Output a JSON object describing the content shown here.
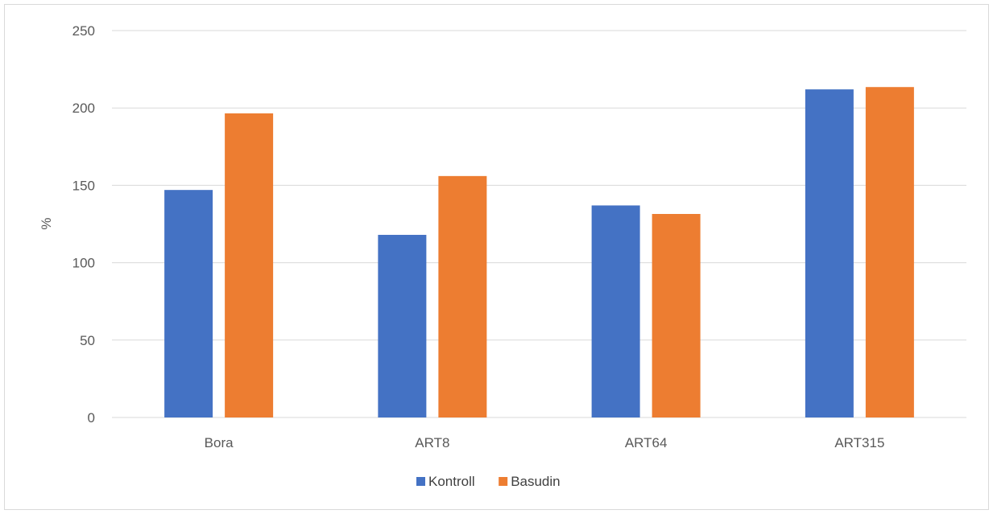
{
  "chart_data": {
    "type": "bar",
    "categories": [
      "Bora",
      "ART8",
      "ART64",
      "ART315"
    ],
    "series": [
      {
        "name": "Kontroll",
        "color": "#4472c4",
        "values": [
          147,
          118,
          137,
          212
        ]
      },
      {
        "name": "Basudin",
        "color": "#ed7d31",
        "values": [
          196.5,
          156,
          131.5,
          213.5
        ]
      }
    ],
    "title": "",
    "xlabel": "",
    "ylabel": "%",
    "ylim": [
      0,
      250
    ],
    "yticks": [
      0,
      50,
      100,
      150,
      200,
      250
    ],
    "grid": true,
    "legend_position": "bottom",
    "colors": {
      "gridline": "#d9d9d9",
      "axis_text": "#595959"
    }
  }
}
